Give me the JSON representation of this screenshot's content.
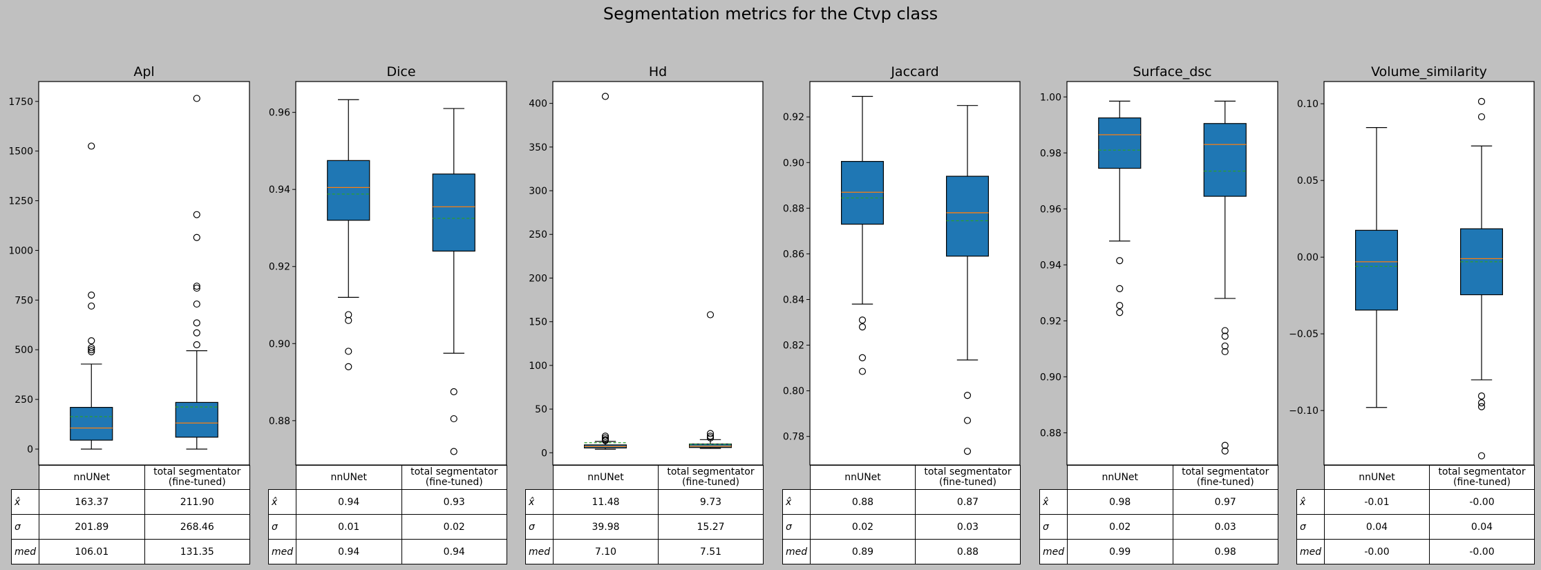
{
  "figure_title": "Segmentation metrics for the Ctvp class",
  "colors": {
    "background": "#c0c0c0",
    "box_fill": "#1f77b4",
    "median_line": "#ff7f0e",
    "mean_line": "#2ca02c"
  },
  "chart_data": [
    {
      "type": "box",
      "title": "Apl",
      "ylim": [
        -80,
        1850
      ],
      "yticks": [
        0,
        250,
        500,
        750,
        1000,
        1250,
        1500,
        1750
      ],
      "series": [
        {
          "name": "nnUNet",
          "whisker_low": 0,
          "q1": 45,
          "median": 106.01,
          "mean": 163.37,
          "q3": 210,
          "whisker_high": 428,
          "outliers": [
            490,
            500,
            510,
            545,
            720,
            775,
            1525
          ]
        },
        {
          "name": "total segmentator\n(fine-tuned)",
          "whisker_low": 0,
          "q1": 60,
          "median": 131.35,
          "mean": 211.9,
          "q3": 235,
          "whisker_high": 495,
          "outliers": [
            525,
            585,
            635,
            730,
            810,
            820,
            1065,
            1180,
            1765
          ]
        }
      ],
      "table": {
        "columns": [
          "nnUNet",
          "total segmentator\n(fine-tuned)"
        ],
        "rows": [
          {
            "label": "x̂",
            "values": [
              "163.37",
              "211.90"
            ]
          },
          {
            "label": "σ",
            "values": [
              "201.89",
              "268.46"
            ]
          },
          {
            "label": "med",
            "values": [
              "106.01",
              "131.35"
            ]
          }
        ]
      }
    },
    {
      "type": "box",
      "title": "Dice",
      "ylim": [
        0.8685,
        0.968
      ],
      "yticks": [
        0.88,
        0.9,
        0.92,
        0.94,
        0.96
      ],
      "ytick_labels": [
        "0.88",
        "0.90",
        "0.92",
        "0.94",
        "0.96"
      ],
      "series": [
        {
          "name": "nnUNet",
          "whisker_low": 0.912,
          "q1": 0.932,
          "median": 0.9405,
          "mean": 0.9388,
          "q3": 0.9475,
          "whisker_high": 0.9633,
          "outliers": [
            0.894,
            0.898,
            0.906,
            0.9075
          ]
        },
        {
          "name": "total segmentator\n(fine-tuned)",
          "whisker_low": 0.8975,
          "q1": 0.924,
          "median": 0.9355,
          "mean": 0.9325,
          "q3": 0.944,
          "whisker_high": 0.961,
          "outliers": [
            0.872,
            0.8805,
            0.8875
          ]
        }
      ],
      "table": {
        "columns": [
          "nnUNet",
          "total segmentator\n(fine-tuned)"
        ],
        "rows": [
          {
            "label": "x̂",
            "values": [
              "0.94",
              "0.93"
            ]
          },
          {
            "label": "σ",
            "values": [
              "0.01",
              "0.02"
            ]
          },
          {
            "label": "med",
            "values": [
              "0.94",
              "0.94"
            ]
          }
        ]
      }
    },
    {
      "type": "box",
      "title": "Hd",
      "ylim": [
        -14,
        425
      ],
      "yticks": [
        0,
        50,
        100,
        150,
        200,
        250,
        300,
        350,
        400
      ],
      "series": [
        {
          "name": "nnUNet",
          "whisker_low": 4,
          "q1": 5.5,
          "median": 7.1,
          "mean": 11.48,
          "q3": 9,
          "whisker_high": 13,
          "outliers": [
            14,
            15,
            17,
            19,
            408
          ]
        },
        {
          "name": "total segmentator\n(fine-tuned)",
          "whisker_low": 5,
          "q1": 6,
          "median": 7.51,
          "mean": 9.73,
          "q3": 10,
          "whisker_high": 15,
          "outliers": [
            17,
            19,
            22,
            158
          ]
        }
      ],
      "table": {
        "columns": [
          "nnUNet",
          "total segmentator\n(fine-tuned)"
        ],
        "rows": [
          {
            "label": "x̂",
            "values": [
              "11.48",
              "9.73"
            ]
          },
          {
            "label": "σ",
            "values": [
              "39.98",
              "15.27"
            ]
          },
          {
            "label": "med",
            "values": [
              "7.10",
              "7.51"
            ]
          }
        ]
      }
    },
    {
      "type": "box",
      "title": "Jaccard",
      "ylim": [
        0.7675,
        0.9355
      ],
      "yticks": [
        0.78,
        0.8,
        0.82,
        0.84,
        0.86,
        0.88,
        0.9,
        0.92
      ],
      "ytick_labels": [
        "0.78",
        "0.80",
        "0.82",
        "0.84",
        "0.86",
        "0.88",
        "0.90",
        "0.92"
      ],
      "series": [
        {
          "name": "nnUNet",
          "whisker_low": 0.838,
          "q1": 0.873,
          "median": 0.887,
          "mean": 0.8845,
          "q3": 0.9005,
          "whisker_high": 0.929,
          "outliers": [
            0.8085,
            0.8145,
            0.828,
            0.831
          ]
        },
        {
          "name": "total segmentator\n(fine-tuned)",
          "whisker_low": 0.8135,
          "q1": 0.859,
          "median": 0.878,
          "mean": 0.8745,
          "q3": 0.894,
          "whisker_high": 0.925,
          "outliers": [
            0.7735,
            0.787,
            0.798
          ]
        }
      ],
      "table": {
        "columns": [
          "nnUNet",
          "total segmentator\n(fine-tuned)"
        ],
        "rows": [
          {
            "label": "x̂",
            "values": [
              "0.88",
              "0.87"
            ]
          },
          {
            "label": "σ",
            "values": [
              "0.02",
              "0.03"
            ]
          },
          {
            "label": "med",
            "values": [
              "0.89",
              "0.88"
            ]
          }
        ]
      }
    },
    {
      "type": "box",
      "title": "Surface_dsc",
      "ylim": [
        0.8685,
        1.0055
      ],
      "yticks": [
        0.88,
        0.9,
        0.92,
        0.94,
        0.96,
        0.98,
        1.0
      ],
      "ytick_labels": [
        "0.88",
        "0.90",
        "0.92",
        "0.94",
        "0.96",
        "0.98",
        "1.00"
      ],
      "series": [
        {
          "name": "nnUNet",
          "whisker_low": 0.9485,
          "q1": 0.9745,
          "median": 0.9865,
          "mean": 0.981,
          "q3": 0.9925,
          "whisker_high": 0.9985,
          "outliers": [
            0.923,
            0.9255,
            0.9315,
            0.9415
          ]
        },
        {
          "name": "total segmentator\n(fine-tuned)",
          "whisker_low": 0.928,
          "q1": 0.9645,
          "median": 0.983,
          "mean": 0.9735,
          "q3": 0.9905,
          "whisker_high": 0.9985,
          "outliers": [
            0.8735,
            0.8755,
            0.909,
            0.911,
            0.9145,
            0.9165
          ]
        }
      ],
      "table": {
        "columns": [
          "nnUNet",
          "total segmentator\n(fine-tuned)"
        ],
        "rows": [
          {
            "label": "x̂",
            "values": [
              "0.98",
              "0.97"
            ]
          },
          {
            "label": "σ",
            "values": [
              "0.02",
              "0.03"
            ]
          },
          {
            "label": "med",
            "values": [
              "0.99",
              "0.98"
            ]
          }
        ]
      }
    },
    {
      "type": "box",
      "title": "Volume_similarity",
      "ylim": [
        -0.1355,
        0.1145
      ],
      "yticks": [
        -0.1,
        -0.05,
        0.0,
        0.05,
        0.1
      ],
      "ytick_labels": [
        "−0.10",
        "−0.05",
        "0.00",
        "0.05",
        "0.10"
      ],
      "series": [
        {
          "name": "nnUNet",
          "whisker_low": -0.098,
          "q1": -0.0345,
          "median": -0.003,
          "mean": -0.006,
          "q3": 0.0175,
          "whisker_high": 0.0845,
          "outliers": []
        },
        {
          "name": "total segmentator\n(fine-tuned)",
          "whisker_low": -0.08,
          "q1": -0.0245,
          "median": -0.001,
          "mean": -0.003,
          "q3": 0.0185,
          "whisker_high": 0.0725,
          "outliers": [
            -0.1295,
            -0.0975,
            -0.095,
            -0.0905,
            0.0915,
            0.1015
          ]
        }
      ],
      "table": {
        "columns": [
          "nnUNet",
          "total segmentator\n(fine-tuned)"
        ],
        "rows": [
          {
            "label": "x̂",
            "values": [
              "-0.01",
              "-0.00"
            ]
          },
          {
            "label": "σ",
            "values": [
              "0.04",
              "0.04"
            ]
          },
          {
            "label": "med",
            "values": [
              "-0.00",
              "-0.00"
            ]
          }
        ]
      }
    }
  ]
}
